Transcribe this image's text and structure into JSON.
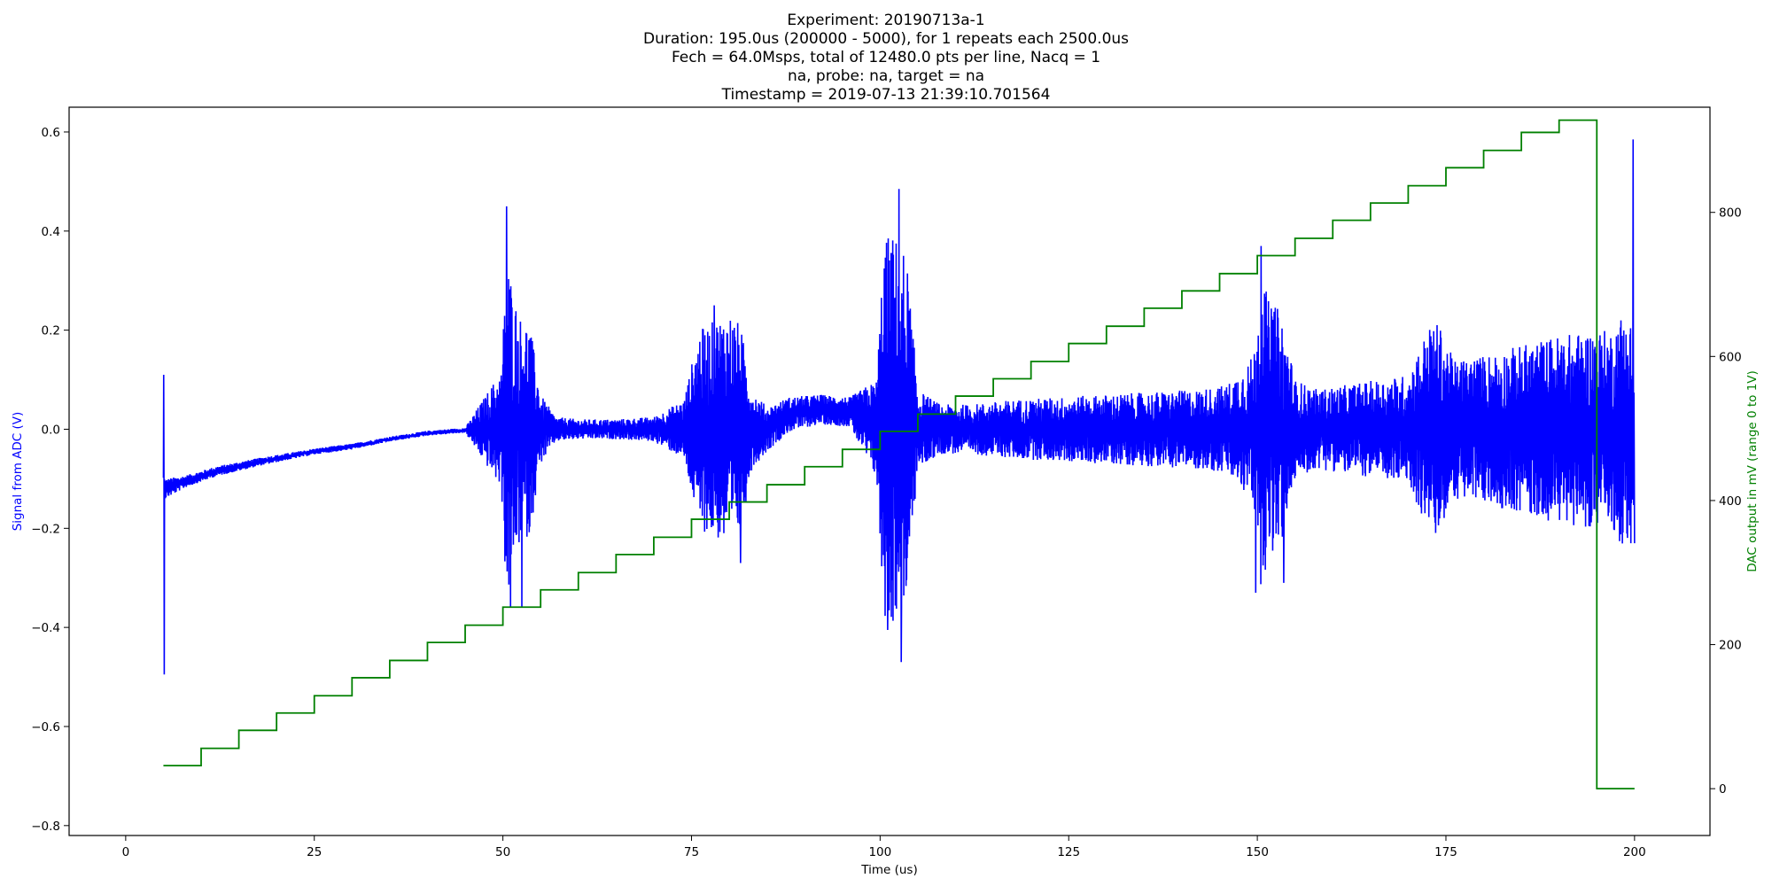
{
  "chart_data": {
    "type": "line",
    "title_lines": [
      "Experiment: 20190713a-1",
      "Duration: 195.0us (200000 - 5000), for 1 repeats each 2500.0us",
      "Fech = 64.0Msps, total of 12480.0 pts per line, Nacq = 1",
      "na, probe: na, target = na",
      "Timestamp = 2019-07-13 21:39:10.701564"
    ],
    "xlabel": "Time (us)",
    "ylabel_left": "Signal from ADC (V)",
    "ylabel_right": "DAC output in mV (range 0 to 1V)",
    "xlim": [
      -7.5,
      210
    ],
    "ylim_left": [
      -0.82,
      0.65
    ],
    "ylim_right": [
      -65,
      946
    ],
    "x_ticks": [
      "0",
      "25",
      "50",
      "75",
      "100",
      "125",
      "150",
      "175",
      "200"
    ],
    "y_ticks_left": [
      "−0.8",
      "−0.6",
      "−0.4",
      "−0.2",
      "0.0",
      "0.2",
      "0.4",
      "0.6"
    ],
    "y_ticks_right": [
      "0",
      "200",
      "400",
      "600",
      "800"
    ],
    "grid": false,
    "colors": {
      "signal": "#0000ff",
      "dac": "#008000",
      "axes": "#000000"
    },
    "series": [
      {
        "axis": "left",
        "style": "noisy-envelope",
        "description_key": "ADC signal",
        "x": [
          5,
          5.3,
          8,
          12,
          18,
          25,
          30,
          35,
          40,
          45,
          49.8,
          50.5,
          51.5,
          52.5,
          53.5,
          55,
          57,
          60,
          65,
          70,
          74,
          76,
          78,
          80,
          81.5,
          83,
          85,
          88,
          92,
          96,
          99.5,
          100.5,
          101.5,
          102.5,
          103.5,
          105,
          108,
          112,
          118,
          124,
          130,
          136,
          142,
          146,
          149.5,
          150.5,
          151.5,
          152.5,
          153.5,
          155,
          158,
          162,
          166,
          170,
          172.5,
          173.5,
          174.5,
          176,
          180,
          185,
          190,
          195,
          197,
          198.5,
          199.5,
          200
        ],
        "center": [
          -0.12,
          -0.12,
          -0.105,
          -0.085,
          -0.065,
          -0.045,
          -0.035,
          -0.02,
          -0.008,
          -0.002,
          0.0,
          0.0,
          0.0,
          0.0,
          0.0,
          0.0,
          0.0,
          0.0,
          0.0,
          0.0,
          0.0,
          0.0,
          0.0,
          0.0,
          0.0,
          0.0,
          0.0,
          0.03,
          0.04,
          0.035,
          0.0,
          0.0,
          0.0,
          0.0,
          0.0,
          0.0,
          0.0,
          0.0,
          0.0,
          0.0,
          0.0,
          0.0,
          0.0,
          0.0,
          0.0,
          0.0,
          0.0,
          0.0,
          0.0,
          0.0,
          0.0,
          0.0,
          0.0,
          0.0,
          0.0,
          0.0,
          0.0,
          0.0,
          0.0,
          0.0,
          0.0,
          0.0,
          0.0,
          0.0,
          0.0,
          0.0
        ],
        "amplitude": [
          0.03,
          0.02,
          0.012,
          0.01,
          0.008,
          0.006,
          0.006,
          0.005,
          0.005,
          0.005,
          0.12,
          0.36,
          0.27,
          0.22,
          0.22,
          0.07,
          0.025,
          0.02,
          0.02,
          0.025,
          0.06,
          0.2,
          0.22,
          0.24,
          0.21,
          0.08,
          0.045,
          0.035,
          0.03,
          0.03,
          0.1,
          0.38,
          0.4,
          0.38,
          0.35,
          0.08,
          0.05,
          0.05,
          0.06,
          0.065,
          0.07,
          0.075,
          0.08,
          0.09,
          0.15,
          0.32,
          0.26,
          0.25,
          0.22,
          0.1,
          0.08,
          0.09,
          0.1,
          0.11,
          0.2,
          0.22,
          0.2,
          0.14,
          0.15,
          0.17,
          0.19,
          0.2,
          0.2,
          0.24,
          0.22,
          0.15
        ],
        "spikes": [
          {
            "x": 5.05,
            "y": 0.11
          },
          {
            "x": 5.1,
            "y": -0.495
          },
          {
            "x": 50.5,
            "y": 0.45
          },
          {
            "x": 51.0,
            "y": -0.36
          },
          {
            "x": 52.5,
            "y": -0.36
          },
          {
            "x": 78,
            "y": 0.25
          },
          {
            "x": 81.5,
            "y": -0.27
          },
          {
            "x": 102.5,
            "y": 0.485
          },
          {
            "x": 102.8,
            "y": -0.47
          },
          {
            "x": 101,
            "y": -0.405
          },
          {
            "x": 150.5,
            "y": 0.37
          },
          {
            "x": 149.8,
            "y": -0.33
          },
          {
            "x": 153.5,
            "y": -0.31
          },
          {
            "x": 199.8,
            "y": 0.585
          },
          {
            "x": 199.5,
            "y": -0.23
          }
        ],
        "start_x": 5,
        "end_x": 200
      },
      {
        "axis": "right",
        "style": "step",
        "description_key": "DAC output",
        "x": [
          5,
          10,
          10,
          15,
          15,
          20,
          20,
          25,
          25,
          30,
          30,
          35,
          35,
          40,
          40,
          45,
          45,
          50,
          50,
          55,
          55,
          60,
          60,
          65,
          65,
          70,
          70,
          75,
          75,
          80,
          80,
          85,
          85,
          90,
          90,
          95,
          95,
          100,
          100,
          105,
          105,
          110,
          110,
          115,
          115,
          120,
          120,
          125,
          125,
          130,
          130,
          135,
          135,
          140,
          140,
          145,
          145,
          150,
          150,
          155,
          155,
          160,
          160,
          165,
          165,
          170,
          170,
          175,
          175,
          180,
          180,
          185,
          185,
          190,
          190,
          195,
          195,
          200,
          200
        ],
        "y": [
          32,
          32,
          56,
          56,
          81,
          81,
          105,
          105,
          129,
          129,
          154,
          154,
          178,
          178,
          203,
          203,
          227,
          227,
          252,
          252,
          276,
          276,
          300,
          300,
          325,
          325,
          349,
          349,
          374,
          374,
          398,
          398,
          422,
          422,
          447,
          447,
          471,
          471,
          496,
          496,
          520,
          520,
          545,
          545,
          569,
          569,
          593,
          593,
          618,
          618,
          642,
          642,
          667,
          667,
          691,
          691,
          715,
          715,
          740,
          740,
          764,
          764,
          789,
          789,
          813,
          813,
          837,
          837,
          862,
          862,
          886,
          886,
          911,
          911,
          928,
          928,
          0,
          0,
          0
        ]
      }
    ]
  }
}
